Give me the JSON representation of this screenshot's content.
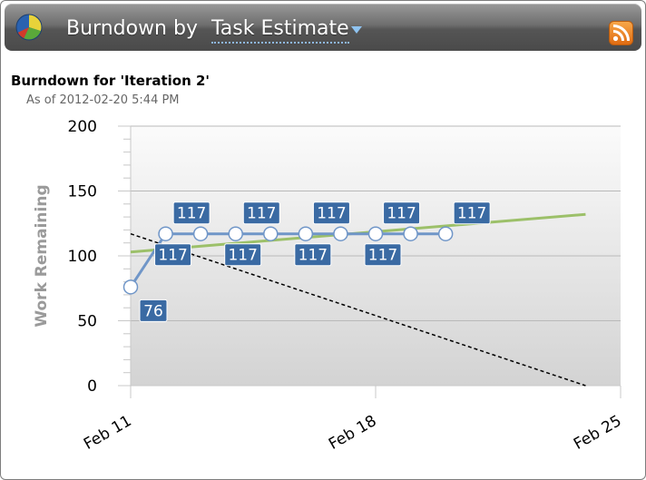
{
  "header": {
    "title_prefix": "Burndown by",
    "selected_option": "Task Estimate",
    "icons": [
      "pie-chart-icon",
      "dropdown-caret-icon",
      "rss-icon"
    ]
  },
  "chart_heading": "Burndown for 'Iteration 2'",
  "chart_subheading": "As of 2012-02-20 5:44 PM",
  "colors": {
    "actual": "#7096c8",
    "trend": "#9cc069",
    "ideal": "#000000",
    "label_bg": "#3a6aa3"
  },
  "chart_data": {
    "type": "line",
    "title": "Burndown for 'Iteration 2'",
    "ylabel": "Work Remaining",
    "xlabel": "",
    "ylim": [
      0,
      200
    ],
    "xlim": [
      "2012-02-11",
      "2012-02-25"
    ],
    "y_ticks": [
      "0",
      "50",
      "100",
      "150",
      "200"
    ],
    "x_ticks": [
      "Feb 11",
      "Feb 18",
      "Feb 25"
    ],
    "grid": true,
    "series": [
      {
        "style": "solid-with-markers",
        "points": [
          {
            "x": "2012-02-11",
            "y": 76,
            "label": "76"
          },
          {
            "x": "2012-02-12",
            "y": 117,
            "label": "117"
          },
          {
            "x": "2012-02-13",
            "y": 117,
            "label": "117"
          },
          {
            "x": "2012-02-14",
            "y": 117,
            "label": "117"
          },
          {
            "x": "2012-02-15",
            "y": 117,
            "label": "117"
          },
          {
            "x": "2012-02-16",
            "y": 117,
            "label": "117"
          },
          {
            "x": "2012-02-17",
            "y": 117,
            "label": "117"
          },
          {
            "x": "2012-02-18",
            "y": 117,
            "label": "117"
          },
          {
            "x": "2012-02-19",
            "y": 117,
            "label": "117"
          },
          {
            "x": "2012-02-20",
            "y": 117,
            "label": "117"
          }
        ]
      },
      {
        "style": "trend",
        "points": [
          {
            "x": "2012-02-11",
            "y": 103
          },
          {
            "x": "2012-02-24",
            "y": 132
          }
        ]
      },
      {
        "style": "dashed",
        "points": [
          {
            "x": "2012-02-11",
            "y": 117
          },
          {
            "x": "2012-02-24",
            "y": 0
          }
        ]
      }
    ]
  }
}
